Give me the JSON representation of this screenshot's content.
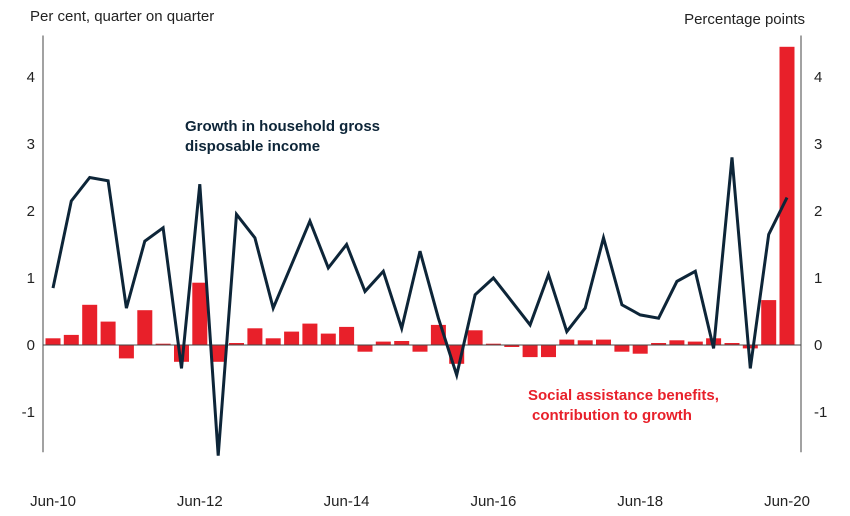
{
  "chart_data": {
    "type": "bar+line",
    "left_axis_title": "Per cent, quarter on quarter",
    "right_axis_title": "Percentage points",
    "ylim": [
      -1.6,
      4.5
    ],
    "y_ticks": [
      -1,
      0,
      1,
      2,
      3,
      4
    ],
    "x_tick_labels": [
      "Jun-10",
      "Jun-12",
      "Jun-14",
      "Jun-16",
      "Jun-18",
      "Jun-20"
    ],
    "x_tick_quarter_index": [
      0,
      8,
      16,
      24,
      32,
      40
    ],
    "colors": {
      "line": "#0d2538",
      "bar": "#e8202a",
      "axis": "#444444"
    },
    "series": [
      {
        "name": "Growth in household gross disposable income",
        "label_lines": [
          "Growth in household gross",
          "disposable income"
        ],
        "type": "line",
        "values": [
          0.85,
          2.15,
          2.5,
          2.45,
          0.55,
          1.55,
          1.75,
          -0.35,
          2.4,
          -1.65,
          1.95,
          1.6,
          0.55,
          1.2,
          1.85,
          1.15,
          1.5,
          0.8,
          1.1,
          0.25,
          1.4,
          0.4,
          -0.45,
          0.75,
          1.0,
          0.65,
          0.3,
          1.05,
          0.2,
          0.55,
          1.6,
          0.6,
          0.45,
          0.4,
          0.95,
          1.1,
          -0.05,
          2.8,
          -0.35,
          1.65,
          2.2
        ]
      },
      {
        "name": "Social assistance benefits, contribution to growth",
        "label_lines": [
          "Social assistance benefits,",
          "contribution to growth"
        ],
        "type": "bar",
        "values": [
          0.1,
          0.15,
          0.6,
          0.35,
          -0.2,
          0.52,
          0.02,
          -0.25,
          0.93,
          -0.25,
          0.03,
          0.25,
          0.1,
          0.2,
          0.32,
          0.17,
          0.27,
          -0.1,
          0.05,
          0.06,
          -0.1,
          0.3,
          -0.28,
          0.22,
          0.02,
          -0.03,
          -0.18,
          -0.18,
          0.08,
          0.07,
          0.08,
          -0.1,
          -0.13,
          0.03,
          0.07,
          0.05,
          0.1,
          0.03,
          -0.05,
          0.67,
          4.45
        ]
      }
    ]
  }
}
